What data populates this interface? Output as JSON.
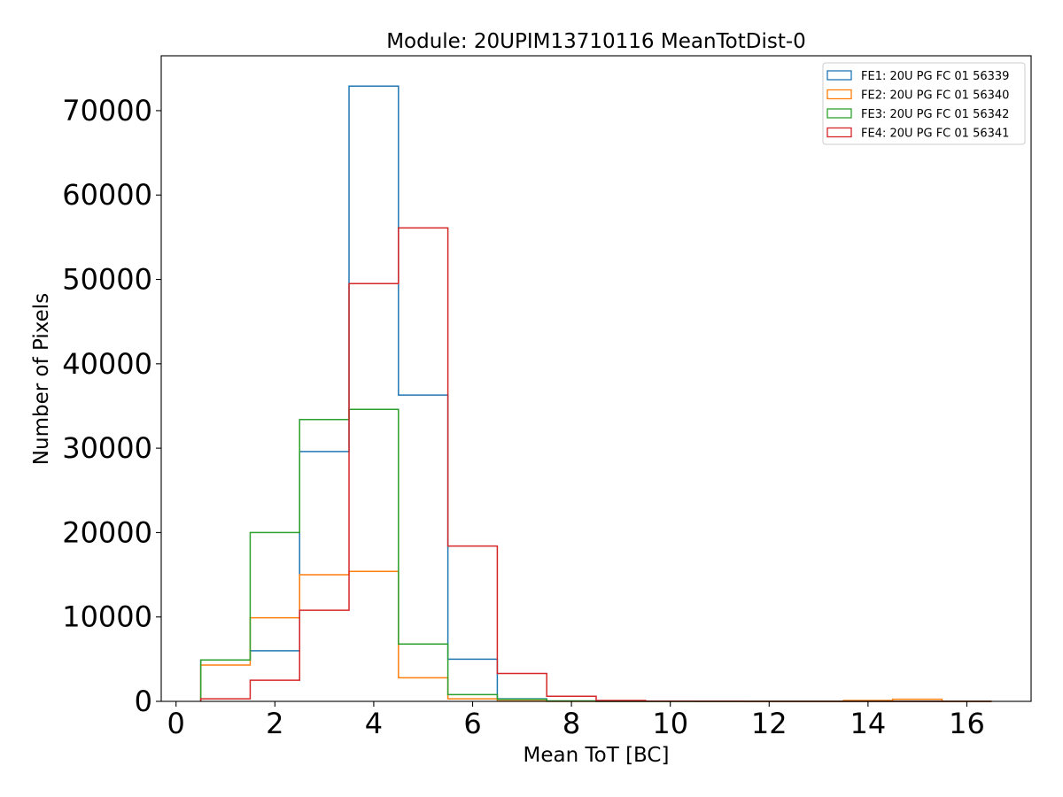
{
  "chart_data": {
    "type": "histogram",
    "title": "Module: 20UPIM13710116 MeanTotDist-0",
    "xlabel": "Mean ToT [BC]",
    "ylabel": "Number of Pixels",
    "xlim": [
      -0.3,
      17.3
    ],
    "ylim": [
      0,
      76500
    ],
    "xticks": [
      0,
      2,
      4,
      6,
      8,
      10,
      12,
      14,
      16
    ],
    "yticks": [
      0,
      10000,
      20000,
      30000,
      40000,
      50000,
      60000,
      70000
    ],
    "grid": false,
    "legend_position": "top-right",
    "bin_edges": [
      0.5,
      1.5,
      2.5,
      3.5,
      4.5,
      5.5,
      6.5,
      7.5,
      8.5,
      9.5,
      10.5,
      11.5,
      12.5,
      13.5,
      14.5,
      15.5,
      16.5
    ],
    "series": [
      {
        "name": "FE1: 20U PG FC 01 56339",
        "color": "#1f77b4",
        "values": [
          4900,
          6000,
          29600,
          72900,
          36300,
          5000,
          300,
          30,
          0,
          0,
          0,
          0,
          0,
          0,
          0,
          0
        ]
      },
      {
        "name": "FE2: 20U PG FC 01 56340",
        "color": "#ff7f0e",
        "values": [
          4300,
          9900,
          15000,
          15400,
          2800,
          300,
          50,
          0,
          0,
          0,
          0,
          0,
          0,
          100,
          250,
          0
        ]
      },
      {
        "name": "FE3: 20U PG FC 01 56342",
        "color": "#2ca02c",
        "values": [
          4900,
          20000,
          33400,
          34600,
          6800,
          800,
          250,
          50,
          0,
          0,
          0,
          0,
          0,
          0,
          0,
          0
        ]
      },
      {
        "name": "FE4: 20U PG FC 01 56341",
        "color": "#d62728",
        "values": [
          300,
          2500,
          10800,
          49500,
          56100,
          18400,
          3300,
          600,
          100,
          30,
          10,
          0,
          0,
          0,
          0,
          0
        ]
      }
    ]
  }
}
